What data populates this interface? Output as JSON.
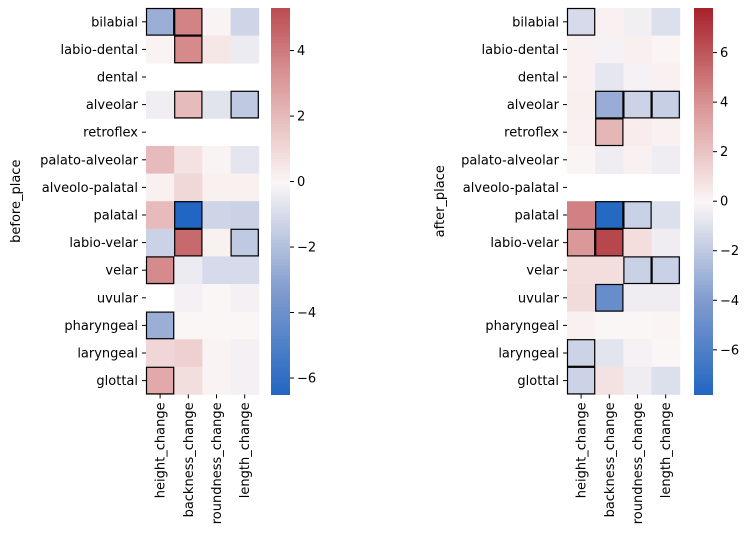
{
  "chart_data": [
    {
      "type": "heatmap",
      "ylabel": "before_place",
      "xlabel": "",
      "columns": [
        "height_change",
        "backness_change",
        "roundness_change",
        "length_change"
      ],
      "rows": [
        "bilabial",
        "labio-dental",
        "dental",
        "alveolar",
        "retroflex",
        "palato-alveolar",
        "alveolo-palatal",
        "palatal",
        "labio-velar",
        "velar",
        "uvular",
        "pharyngeal",
        "laryngeal",
        "glottal"
      ],
      "values": [
        [
          -2.6,
          3.8,
          0.1,
          -1.2
        ],
        [
          0.1,
          3.6,
          0.5,
          -0.4
        ],
        [
          null,
          null,
          null,
          null
        ],
        [
          -0.3,
          2.0,
          -0.7,
          -1.6
        ],
        [
          null,
          null,
          null,
          null
        ],
        [
          2.0,
          0.7,
          0.1,
          -0.6
        ],
        [
          0.2,
          1.0,
          0.2,
          0.2
        ],
        [
          2.0,
          -6.5,
          -1.2,
          -1.3
        ],
        [
          -1.3,
          4.5,
          0.2,
          -1.6
        ],
        [
          3.6,
          -0.4,
          -1.0,
          -1.0
        ],
        [
          null,
          -0.2,
          0.0,
          -0.2
        ],
        [
          -2.6,
          0.0,
          0.0,
          0.0
        ],
        [
          1.1,
          1.3,
          0.1,
          -0.2
        ],
        [
          2.6,
          0.8,
          0.1,
          -0.2
        ]
      ],
      "highlighted": [
        [
          0,
          0
        ],
        [
          0,
          1
        ],
        [
          1,
          1
        ],
        [
          3,
          1
        ],
        [
          3,
          3
        ],
        [
          7,
          1
        ],
        [
          8,
          1
        ],
        [
          8,
          3
        ],
        [
          9,
          0
        ],
        [
          11,
          0
        ],
        [
          13,
          0
        ]
      ],
      "colorbar": {
        "min": -6.5,
        "max": 5.3,
        "ticks": [
          -6,
          -4,
          -2,
          0,
          2,
          4
        ]
      }
    },
    {
      "type": "heatmap",
      "ylabel": "after_place",
      "xlabel": "",
      "columns": [
        "height_change",
        "backness_change",
        "roundness_change",
        "length_change"
      ],
      "rows": [
        "bilabial",
        "labio-dental",
        "dental",
        "alveolar",
        "retroflex",
        "palato-alveolar",
        "alveolo-palatal",
        "palatal",
        "labio-velar",
        "velar",
        "uvular",
        "pharyngeal",
        "laryngeal",
        "glottal"
      ],
      "values": [
        [
          -1.2,
          0.2,
          -0.3,
          -1.0
        ],
        [
          0.2,
          -0.2,
          0.3,
          0.1
        ],
        [
          0.2,
          -0.7,
          -0.2,
          0.2
        ],
        [
          0.3,
          -3.2,
          -1.5,
          -1.7
        ],
        [
          0.2,
          2.6,
          0.4,
          0.2
        ],
        [
          0.1,
          -0.4,
          0.2,
          -0.4
        ],
        [
          null,
          null,
          null,
          null
        ],
        [
          4.6,
          -7.6,
          -1.6,
          -1.0
        ],
        [
          3.8,
          6.6,
          1.0,
          -0.4
        ],
        [
          1.0,
          1.0,
          -1.6,
          -1.6
        ],
        [
          1.1,
          -5.0,
          -0.4,
          -0.4
        ],
        [
          0.2,
          0.0,
          0.0,
          0.1
        ],
        [
          -1.5,
          -0.8,
          -0.2,
          0.0
        ],
        [
          -1.5,
          0.8,
          -0.4,
          -1.0
        ]
      ],
      "highlighted": [
        [
          0,
          0
        ],
        [
          3,
          1
        ],
        [
          3,
          2
        ],
        [
          3,
          3
        ],
        [
          4,
          1
        ],
        [
          7,
          1
        ],
        [
          7,
          2
        ],
        [
          8,
          0
        ],
        [
          8,
          1
        ],
        [
          9,
          2
        ],
        [
          9,
          3
        ],
        [
          10,
          1
        ],
        [
          12,
          0
        ],
        [
          13,
          0
        ]
      ],
      "colorbar": {
        "min": -7.8,
        "max": 7.8,
        "ticks": [
          -6,
          -4,
          -2,
          0,
          2,
          4,
          6
        ]
      }
    }
  ]
}
